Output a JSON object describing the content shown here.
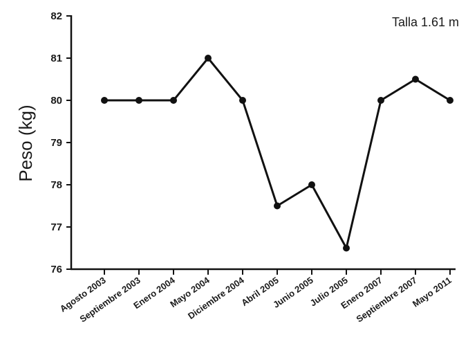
{
  "chart_data": {
    "type": "line",
    "title": "",
    "annotation": "Talla 1.61 m",
    "xlabel": "",
    "ylabel": "Peso (kg)",
    "ylim": [
      76,
      82
    ],
    "y_ticks": [
      76,
      77,
      78,
      79,
      80,
      81,
      82
    ],
    "grid": false,
    "categories": [
      "Agosto 2003",
      "Septiembre 2003",
      "Enero 2004",
      "Mayo 2004",
      "Diciembre 2004",
      "Abril 2005",
      "Junio 2005",
      "Julio 2005",
      "Enero 2007",
      "Septiembre 2007",
      "Mayo 2011"
    ],
    "series": [
      {
        "values": [
          80,
          80,
          80,
          81,
          80,
          77.5,
          78,
          76.5,
          80,
          80.5,
          80
        ]
      }
    ],
    "colors": {
      "line": "#111111",
      "marker": "#111111",
      "axis": "#111111"
    }
  }
}
